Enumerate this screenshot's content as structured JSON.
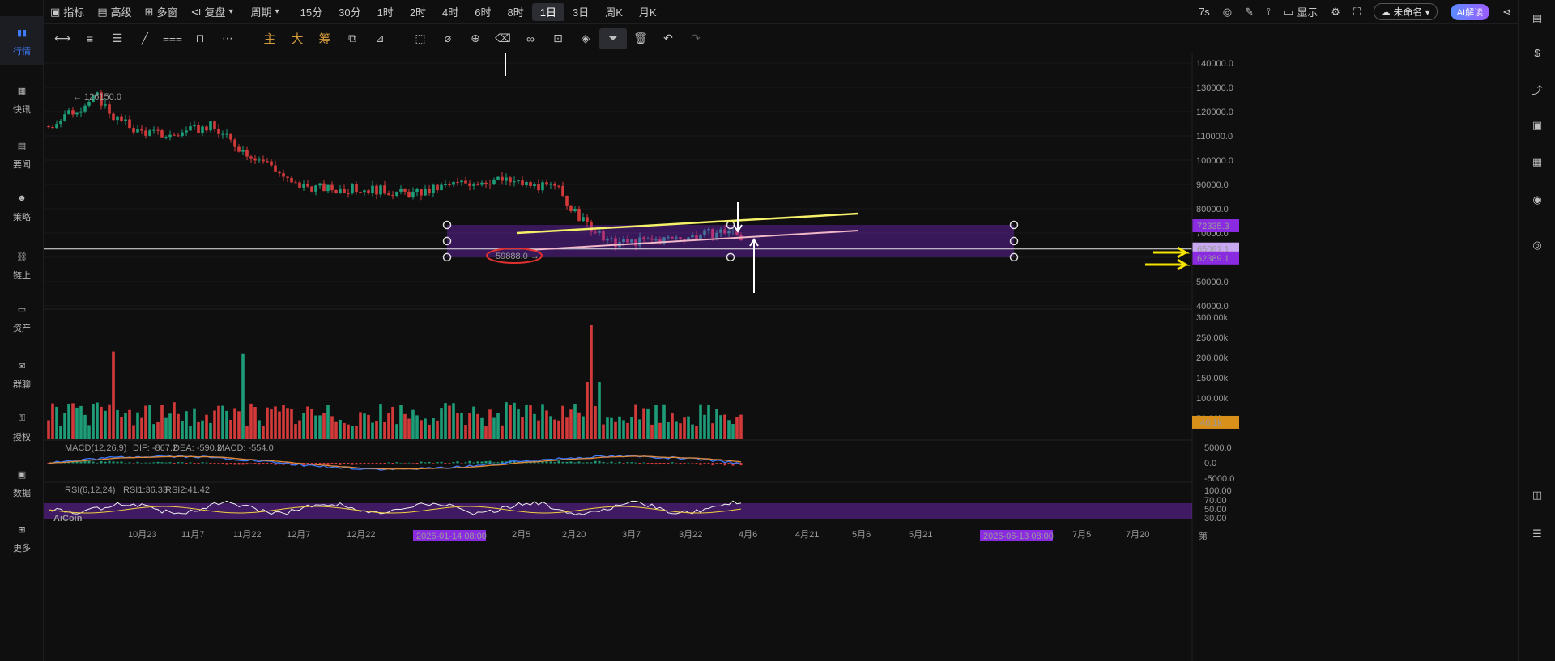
{
  "sidebar": {
    "items": [
      {
        "label": "行情",
        "icon": "bar-chart-icon",
        "active": true
      },
      {
        "label": "快讯",
        "icon": "news-flash-icon"
      },
      {
        "label": "要闻",
        "icon": "document-icon"
      },
      {
        "label": "策略",
        "icon": "robot-icon"
      },
      {
        "label": "链上",
        "icon": "chain-icon"
      },
      {
        "label": "资产",
        "icon": "wallet-icon"
      },
      {
        "label": "群聊",
        "icon": "chat-icon"
      },
      {
        "label": "授权",
        "icon": "key-icon"
      },
      {
        "label": "数据",
        "icon": "data-icon"
      },
      {
        "label": "更多",
        "icon": "grid-icon"
      }
    ]
  },
  "topbar": {
    "indicator": "指标",
    "advanced": "高级",
    "multi_window": "多窗",
    "replay": "复盘",
    "period": "周期",
    "intervals": [
      "15分",
      "30分",
      "1时",
      "2时",
      "4时",
      "6时",
      "8时",
      "1日",
      "3日",
      "周K",
      "月K"
    ],
    "selected_interval": "1日",
    "countdown": "7s",
    "display": "显示",
    "layout_name": "未命名",
    "ai_label": "AI解读"
  },
  "toolbar": {
    "main": "主",
    "big": "大",
    "chips": "筹"
  },
  "colors": {
    "up": "#1e9c78",
    "down": "#d23a3a",
    "accent": "#3f7bff",
    "box": "#8a2be2",
    "yellow_line": "#f5f06a",
    "pink_line": "#f0b8c8"
  },
  "chart_data": {
    "type": "candlestick",
    "price_axis": {
      "ticks": [
        "140000.0",
        "130000.0",
        "120000.0",
        "110000.0",
        "100000.0",
        "90000.0",
        "80000.0",
        "70000.0",
        "60000.0",
        "50000.0",
        "40000.0"
      ],
      "ylim": [
        40000,
        140000
      ]
    },
    "annotations": {
      "high_label": "← 126150.0",
      "low_label": "59888.0 →",
      "box_top_price": "72335.3",
      "current_price": "65091.1",
      "box_bottom_price": "62389.1"
    },
    "volume_axis": {
      "ticks": [
        "300.00k",
        "250.00k",
        "200.00k",
        "150.00k",
        "100.00k",
        "50.00k"
      ],
      "current": "40.1k"
    },
    "macd": {
      "label": "MACD(12,26,9)",
      "dif": "DIF: -867.2",
      "dea": "DEA: -590.2",
      "macd": "MACD: -554.0",
      "ticks": [
        "5000.0",
        "0.0",
        "-5000.0"
      ]
    },
    "rsi": {
      "label": "RSI(6,12,24)",
      "rsi1": "RSI1:36.33",
      "rsi2": "RSI2:41.42",
      "ticks": [
        "100.00",
        "70.00",
        "50.00",
        "30.00"
      ]
    },
    "x_ticks": [
      "10月23",
      "11月7",
      "11月22",
      "12月7",
      "12月22",
      "2月5",
      "2月20",
      "3月7",
      "3月22",
      "4月6",
      "4月21",
      "5月6",
      "5月21",
      "7月5",
      "7月20"
    ],
    "x_highlights": [
      "2026-01-14 08:00",
      "2026-06-13 08:00"
    ],
    "last_axis_char": "第",
    "watermark": "AiCoin"
  }
}
